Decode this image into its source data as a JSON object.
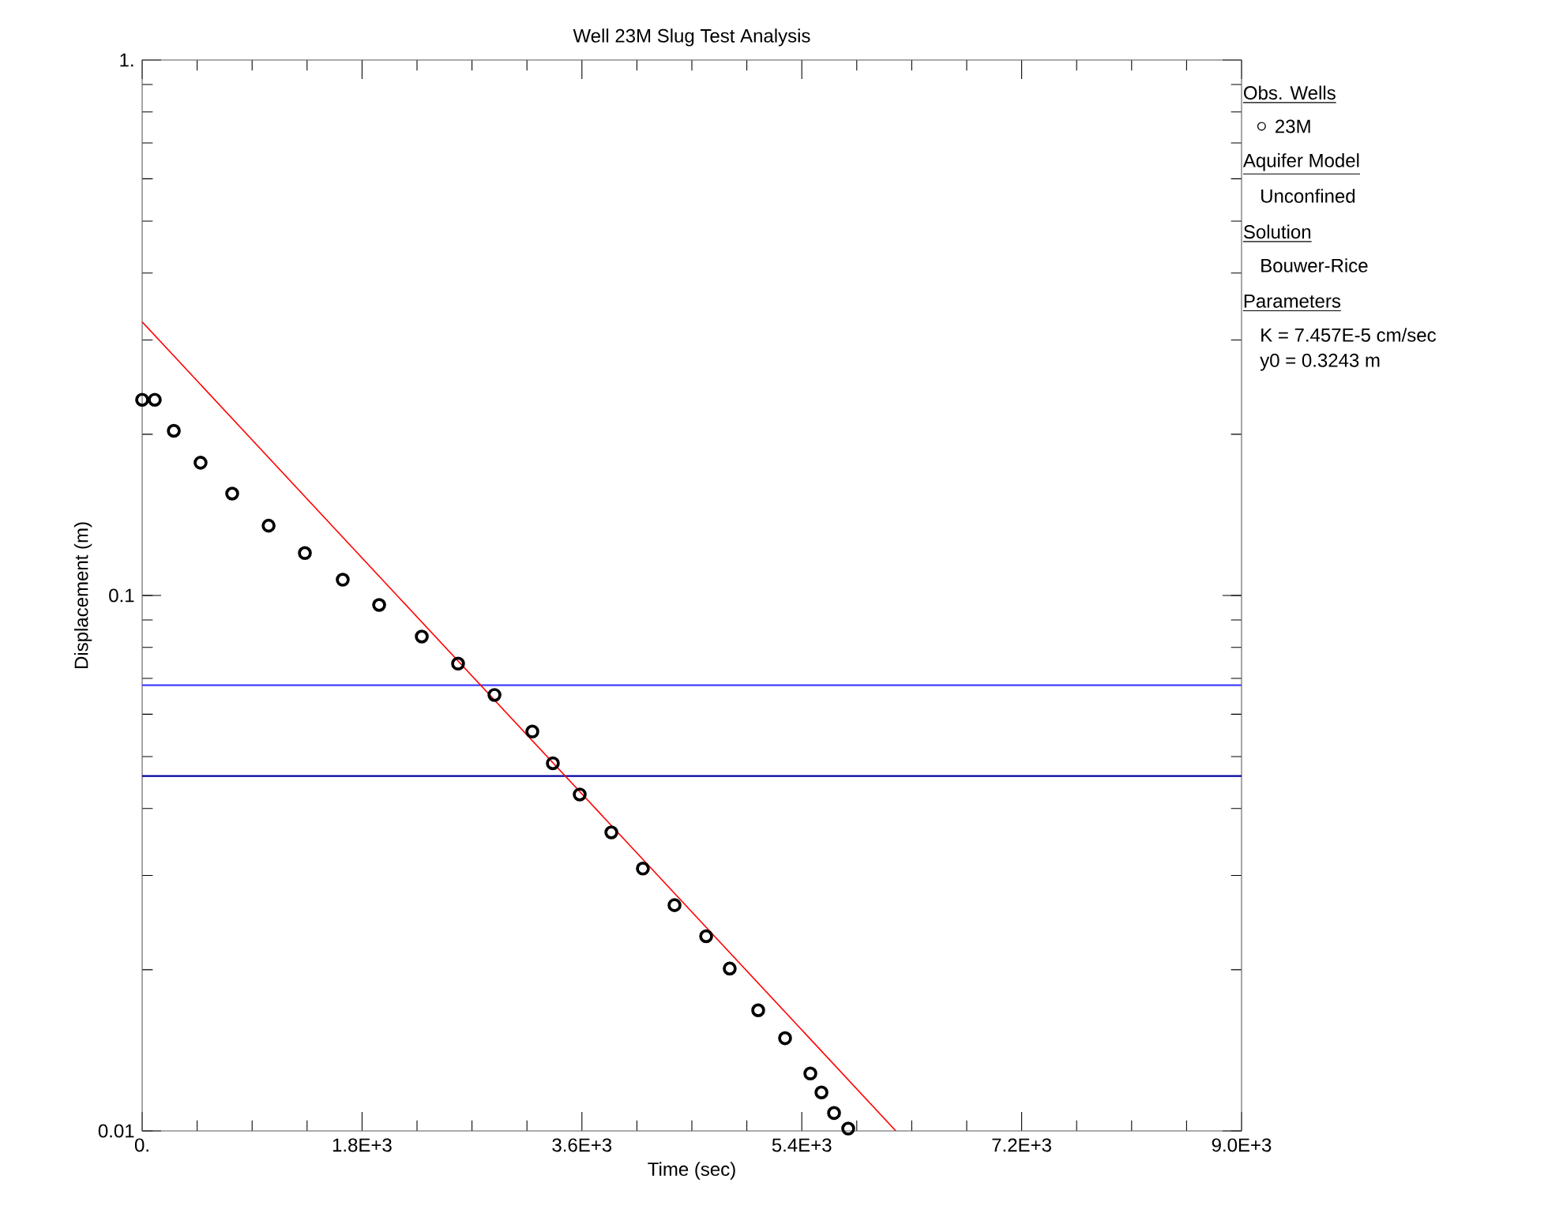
{
  "chart_data": {
    "type": "scatter",
    "title": "Well 23M Slug Test Analysis",
    "xlabel": "Time (sec)",
    "ylabel": "Displacement (m)",
    "legend_title": "Obs. Wells",
    "series": [
      {
        "name": "23M",
        "marker": "circle",
        "color": "#000000",
        "x": [
          0,
          103,
          259,
          478,
          737,
          1035,
          1332,
          1642,
          1940,
          2289,
          2586,
          2884,
          3194,
          3362,
          3582,
          3841,
          4099,
          4358,
          4617,
          4810,
          5043,
          5263,
          5470,
          5561,
          5664,
          5780
        ],
        "values": [
          0.232,
          0.232,
          0.203,
          0.177,
          0.155,
          0.135,
          0.12,
          0.107,
          0.096,
          0.0838,
          0.0746,
          0.0652,
          0.0557,
          0.0486,
          0.0425,
          0.0361,
          0.0309,
          0.0264,
          0.0231,
          0.0201,
          0.0168,
          0.0149,
          0.0128,
          0.0118,
          0.0108,
          0.0101
        ]
      },
      {
        "type": "line",
        "color": "#ff0000",
        "x": [
          0,
          6170
        ],
        "values": [
          0.3243,
          0.01
        ]
      }
    ],
    "log": "y",
    "xlim": [
      0,
      9000
    ],
    "ylim": [
      0.01,
      1
    ],
    "xticks": [
      {
        "value": 0,
        "label": "0."
      },
      {
        "value": 1800,
        "label": "1.8E+3"
      },
      {
        "value": 3600,
        "label": "3.6E+3"
      },
      {
        "value": 5400,
        "label": "5.4E+3"
      },
      {
        "value": 7200,
        "label": "7.2E+3"
      },
      {
        "value": 9000,
        "label": "9.0E+3"
      }
    ],
    "yticks": [
      0.01,
      0.1,
      {
        "value": 1,
        "label": "1."
      }
    ],
    "ref_lines": [
      {
        "axis": "y",
        "value": 0.068,
        "color": "#4040ff"
      },
      {
        "axis": "y",
        "value": 0.046,
        "color": "#0000a0"
      }
    ],
    "legend": "right",
    "grid": false,
    "annotations": [
      "Aquifer Model",
      "Unconfined",
      "Solution",
      "Bouwer-Rice",
      "Parameters",
      "K  = 7.457E-5 cm/sec",
      "y0 = 0.3243 m"
    ]
  }
}
